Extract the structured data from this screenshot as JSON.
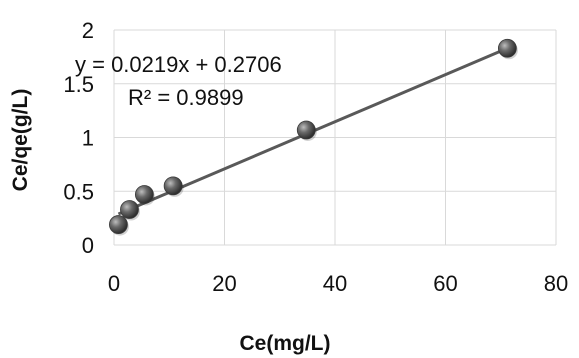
{
  "chart_data": {
    "type": "scatter",
    "title": "",
    "xlabel": "Ce(mg/L)",
    "ylabel": "Ce/qe(g/L)",
    "xlim": [
      0,
      80
    ],
    "ylim": [
      0,
      2
    ],
    "x_ticks": [
      "0",
      "20",
      "40",
      "60",
      "80"
    ],
    "y_ticks": [
      "0",
      "0.5",
      "1",
      "1.5",
      "2"
    ],
    "grid": true,
    "series": [
      {
        "x": [
          0.8,
          2.8,
          5.5,
          10.7,
          34.8,
          71.2
        ],
        "y": [
          0.19,
          0.33,
          0.47,
          0.55,
          1.07,
          1.83
        ]
      }
    ],
    "trendline": {
      "type": "linear",
      "slope": 0.0219,
      "intercept": 0.2706,
      "x_range": [
        0.8,
        71.2
      ]
    },
    "annotations": {
      "equation": "y = 0.0219x + 0.2706",
      "r_squared": "R² = 0.9899"
    },
    "colors": {
      "marker": "#555555",
      "trendline": "#595959",
      "grid": "#d9d9d9"
    }
  }
}
